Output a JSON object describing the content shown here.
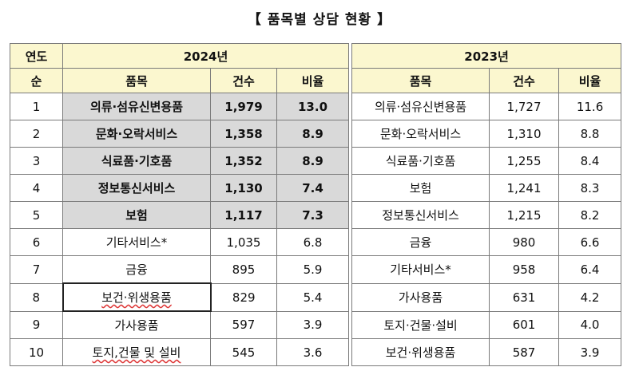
{
  "title": "【 품목별 상담 현황 】",
  "header": {
    "year_label": "연도",
    "rank_label": "순",
    "year_2024": "2024년",
    "year_2023": "2023년",
    "col_item": "품목",
    "col_count": "건수",
    "col_ratio": "비율"
  },
  "rows": [
    {
      "rank": "1",
      "item_2024": "의류·섬유신변용품",
      "count_2024": "1,979",
      "ratio_2024": "13.0",
      "item_2023": "의류·섬유신변용품",
      "count_2023": "1,727",
      "ratio_2023": "11.6"
    },
    {
      "rank": "2",
      "item_2024": "문화·오락서비스",
      "count_2024": "1,358",
      "ratio_2024": "8.9",
      "item_2023": "문화·오락서비스",
      "count_2023": "1,310",
      "ratio_2023": "8.8"
    },
    {
      "rank": "3",
      "item_2024": "식료품·기호품",
      "count_2024": "1,352",
      "ratio_2024": "8.9",
      "item_2023": "식료품·기호품",
      "count_2023": "1,255",
      "ratio_2023": "8.4"
    },
    {
      "rank": "4",
      "item_2024": "정보통신서비스",
      "count_2024": "1,130",
      "ratio_2024": "7.4",
      "item_2023": "보험",
      "count_2023": "1,241",
      "ratio_2023": "8.3"
    },
    {
      "rank": "5",
      "item_2024": "보험",
      "count_2024": "1,117",
      "ratio_2024": "7.3",
      "item_2023": "정보통신서비스",
      "count_2023": "1,215",
      "ratio_2023": "8.2"
    },
    {
      "rank": "6",
      "item_2024": "기타서비스*",
      "count_2024": "1,035",
      "ratio_2024": "6.8",
      "item_2023": "금융",
      "count_2023": "980",
      "ratio_2023": "6.6"
    },
    {
      "rank": "7",
      "item_2024": "금융",
      "count_2024": "895",
      "ratio_2024": "5.9",
      "item_2023": "기타서비스*",
      "count_2023": "958",
      "ratio_2023": "6.4"
    },
    {
      "rank": "8",
      "item_2024": "보건·위생용품",
      "count_2024": "829",
      "ratio_2024": "5.4",
      "item_2023": "가사용품",
      "count_2023": "631",
      "ratio_2023": "4.2"
    },
    {
      "rank": "9",
      "item_2024": "가사용품",
      "count_2024": "597",
      "ratio_2024": "3.9",
      "item_2023": "토지·건물·설비",
      "count_2023": "601",
      "ratio_2023": "4.0"
    },
    {
      "rank": "10",
      "item_2024": "토지,건물 및 설비",
      "count_2024": "545",
      "ratio_2024": "3.6",
      "item_2023": "보건·위생용품",
      "count_2023": "587",
      "ratio_2023": "3.9"
    }
  ]
}
